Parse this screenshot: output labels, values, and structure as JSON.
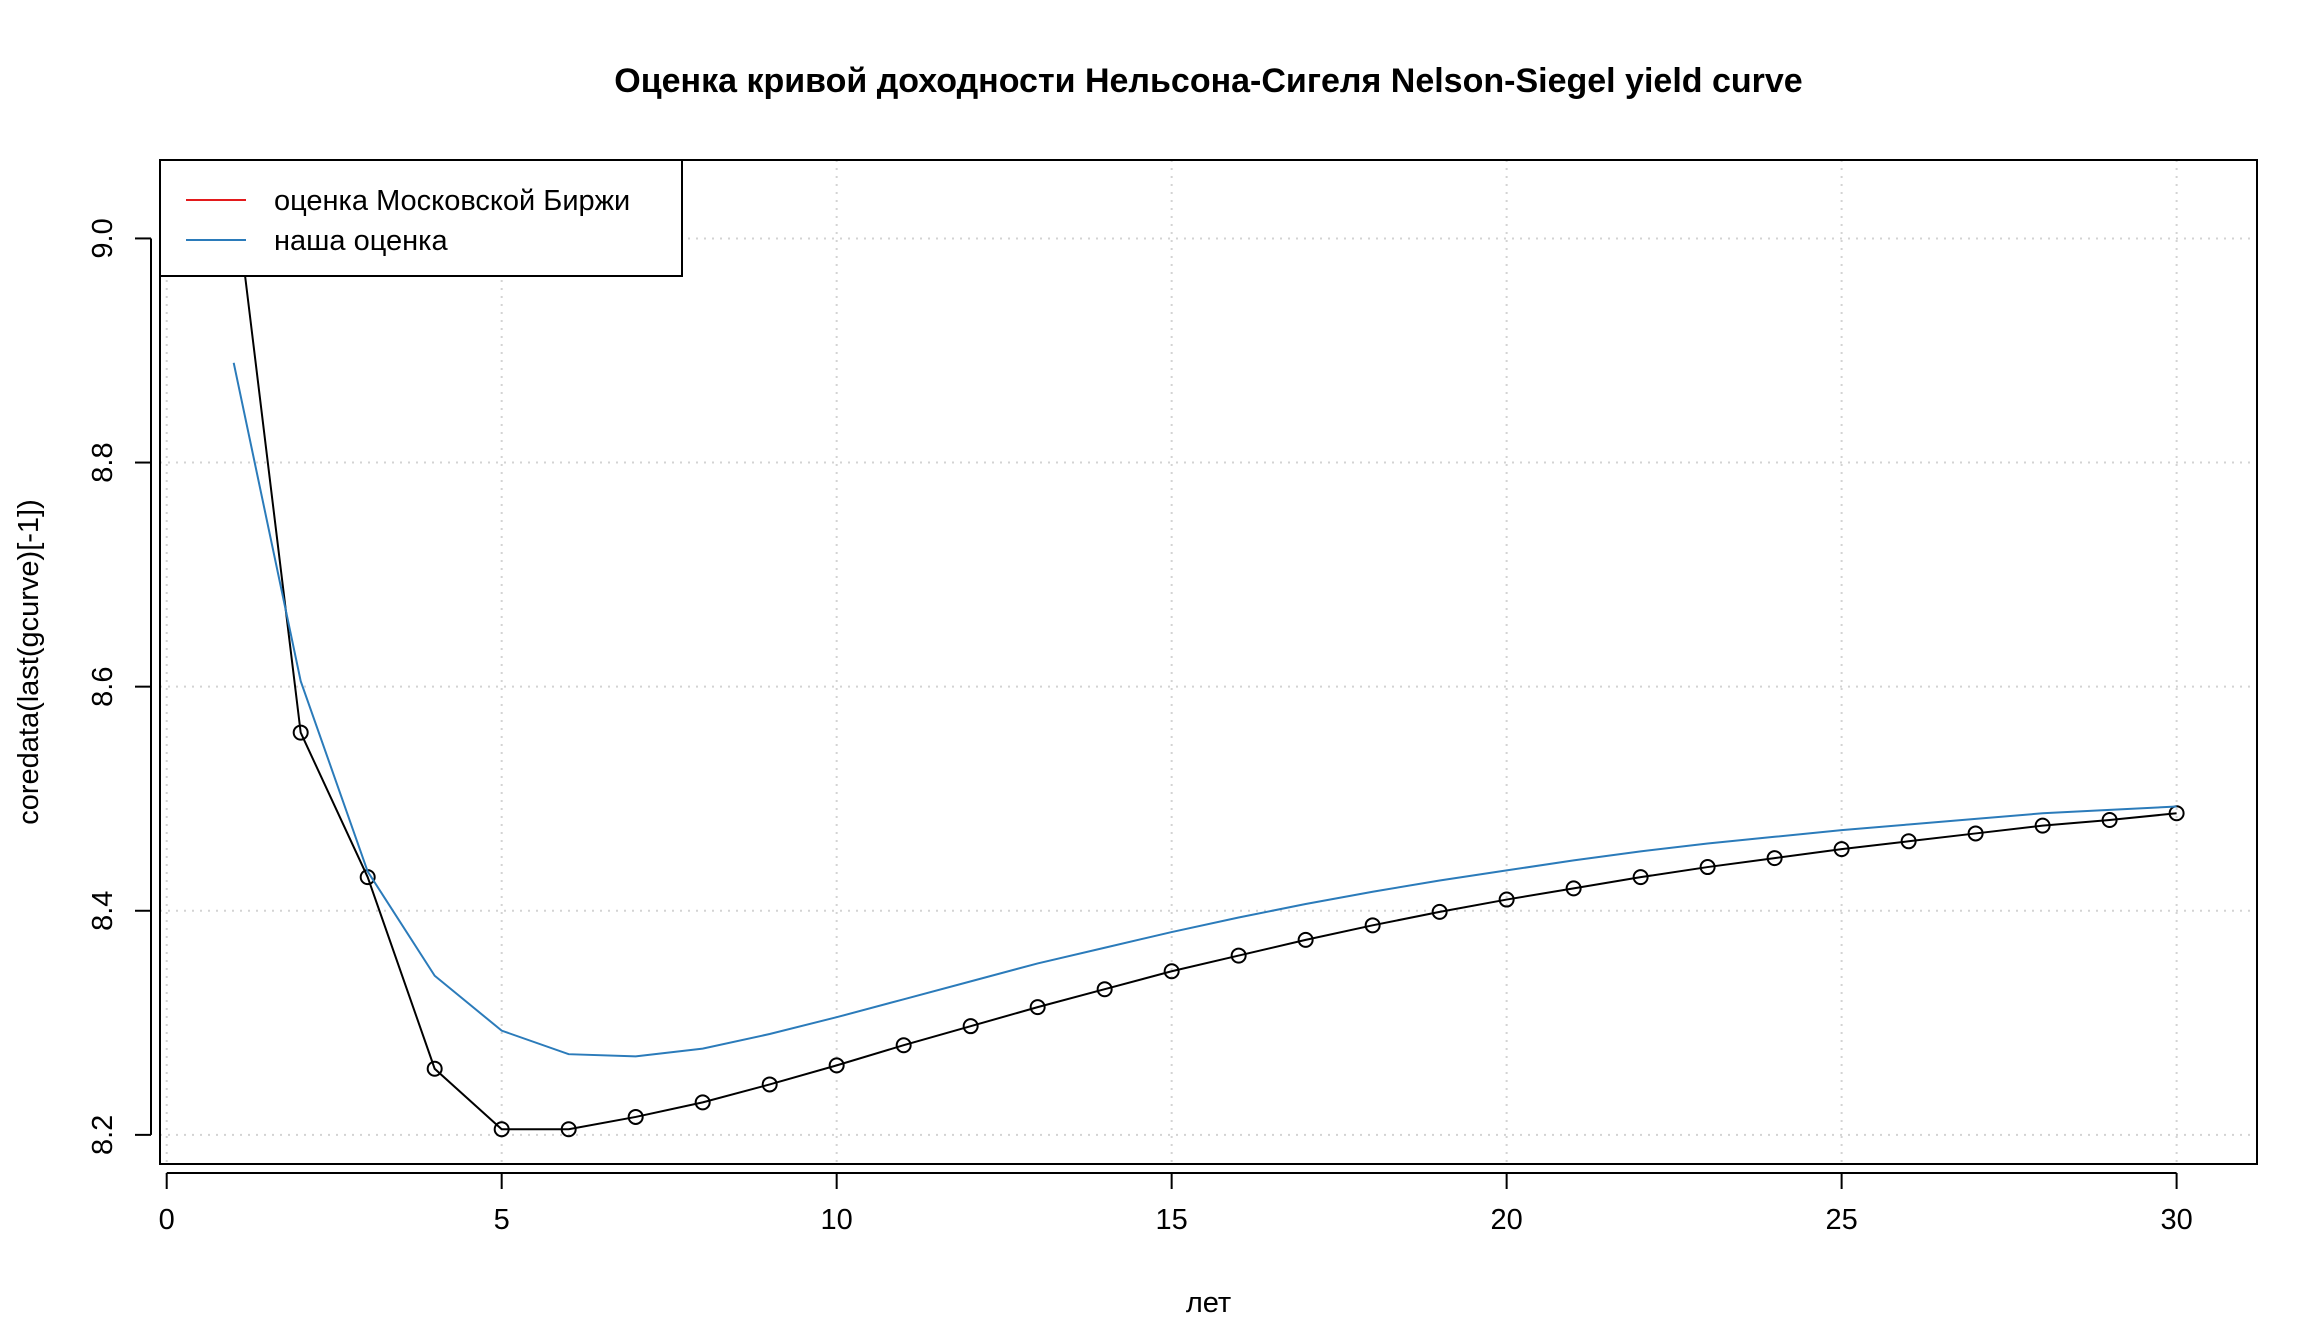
{
  "chart_data": {
    "type": "line",
    "title": "Оценка кривой доходности Нельсона-Сигеля Nelson-Siegel yield curve",
    "xlabel": "лет",
    "ylabel": "coredata(last(gcurve)[-1])",
    "xlim": [
      -0.1,
      31.2
    ],
    "ylim": [
      8.174,
      9.07
    ],
    "x_ticks": [
      0,
      5,
      10,
      15,
      20,
      25,
      30
    ],
    "y_ticks": [
      8.2,
      8.4,
      8.6,
      8.8,
      9.0
    ],
    "y_tick_labels": [
      "8.2",
      "8.4",
      "8.6",
      "8.8",
      "9.0"
    ],
    "grid": true,
    "legend_position": "top-left",
    "legend": [
      {
        "label": "оценка Московской Биржи",
        "color": "#e31a1c"
      },
      {
        "label": "наша оценка",
        "color": "#2b7bba"
      }
    ],
    "series": [
      {
        "color": "#000000",
        "markers": true,
        "x": [
          1,
          2,
          3,
          4,
          5,
          6,
          7,
          8,
          9,
          10,
          11,
          12,
          13,
          14,
          15,
          16,
          17,
          18,
          19,
          20,
          21,
          22,
          23,
          24,
          25,
          26,
          27,
          28,
          29,
          30
        ],
        "values": [
          9.05,
          8.559,
          8.43,
          8.259,
          8.205,
          8.205,
          8.216,
          8.229,
          8.245,
          8.262,
          8.28,
          8.297,
          8.314,
          8.33,
          8.346,
          8.36,
          8.374,
          8.387,
          8.399,
          8.41,
          8.42,
          8.43,
          8.439,
          8.447,
          8.455,
          8.462,
          8.469,
          8.476,
          8.481,
          8.487
        ]
      },
      {
        "color": "#2b7bba",
        "markers": false,
        "x": [
          1,
          2,
          3,
          4,
          5,
          6,
          7,
          8,
          9,
          10,
          11,
          12,
          13,
          14,
          15,
          16,
          17,
          18,
          19,
          20,
          21,
          22,
          23,
          24,
          25,
          26,
          27,
          28,
          29,
          30
        ],
        "values": [
          8.889,
          8.605,
          8.435,
          8.342,
          8.293,
          8.272,
          8.27,
          8.277,
          8.29,
          8.305,
          8.321,
          8.337,
          8.353,
          8.367,
          8.381,
          8.394,
          8.406,
          8.417,
          8.427,
          8.436,
          8.445,
          8.453,
          8.46,
          8.466,
          8.472,
          8.477,
          8.482,
          8.487,
          8.49,
          8.493
        ]
      }
    ]
  }
}
